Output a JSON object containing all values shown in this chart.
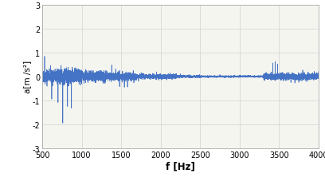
{
  "title": "",
  "xlabel": "f [Hz]",
  "ylabel": "a[m /s²]",
  "xlim": [
    500,
    4000
  ],
  "ylim": [
    -3,
    3
  ],
  "yticks": [
    -3,
    -2,
    -1,
    0,
    1,
    2,
    3
  ],
  "xticks": [
    500,
    1000,
    1500,
    2000,
    2500,
    3000,
    3500,
    4000
  ],
  "line_color": "#4472C4",
  "background_color": "#ffffff",
  "plot_bg_color": "#f5f5f0",
  "grid_color": "#d8d8d8",
  "spine_color": "#aaaaaa",
  "seed": 42,
  "num_points": 7000,
  "freq_start": 500,
  "freq_end": 4000,
  "xlabel_fontsize": 8.5,
  "ylabel_fontsize": 7.5,
  "tick_fontsize": 7.0
}
